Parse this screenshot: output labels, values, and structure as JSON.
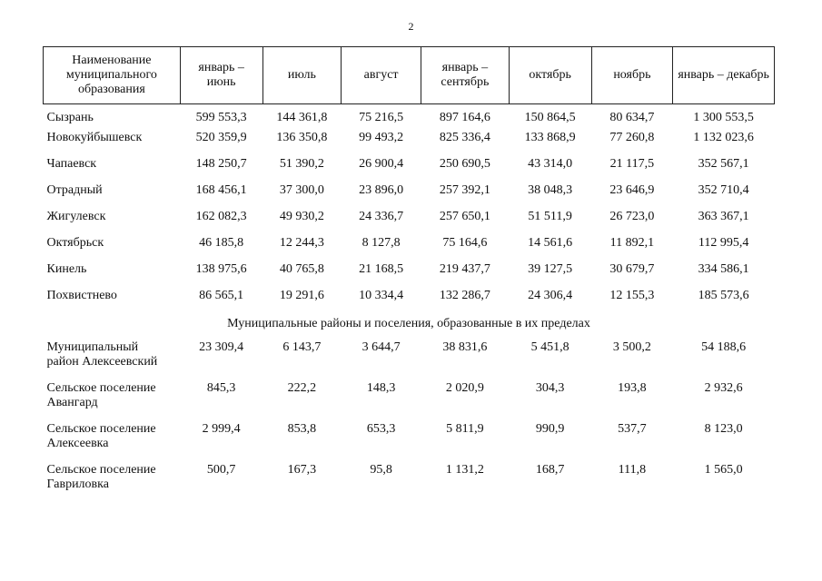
{
  "page_number": "2",
  "table": {
    "headers": [
      "Наименование муниципального образования",
      "январь – июнь",
      "июль",
      "август",
      "январь – сентябрь",
      "октябрь",
      "ноябрь",
      "январь – декабрь"
    ],
    "city_rows": [
      {
        "name": "Сызрань",
        "values": [
          "599 553,3",
          "144 361,8",
          "75 216,5",
          "897 164,6",
          "150 864,5",
          "80 634,7",
          "1 300 553,5"
        ]
      },
      {
        "name": "Новокуйбышевск",
        "values": [
          "520 359,9",
          "136 350,8",
          "99 493,2",
          "825 336,4",
          "133 868,9",
          "77 260,8",
          "1 132 023,6"
        ]
      },
      {
        "name": "Чапаевск",
        "values": [
          "148 250,7",
          "51 390,2",
          "26 900,4",
          "250 690,5",
          "43 314,0",
          "21 117,5",
          "352 567,1"
        ]
      },
      {
        "name": "Отрадный",
        "values": [
          "168 456,1",
          "37 300,0",
          "23 896,0",
          "257 392,1",
          "38 048,3",
          "23 646,9",
          "352 710,4"
        ]
      },
      {
        "name": "Жигулевск",
        "values": [
          "162 082,3",
          "49 930,2",
          "24 336,7",
          "257 650,1",
          "51 511,9",
          "26 723,0",
          "363 367,1"
        ]
      },
      {
        "name": "Октябрьск",
        "values": [
          "46 185,8",
          "12 244,3",
          "8 127,8",
          "75 164,6",
          "14 561,6",
          "11 892,1",
          "112 995,4"
        ]
      },
      {
        "name": "Кинель",
        "values": [
          "138 975,6",
          "40 765,8",
          "21 168,5",
          "219 437,7",
          "39 127,5",
          "30 679,7",
          "334 586,1"
        ]
      },
      {
        "name": "Похвистнево",
        "values": [
          "86 565,1",
          "19 291,6",
          "10 334,4",
          "132 286,7",
          "24 306,4",
          "12 155,3",
          "185 573,6"
        ]
      }
    ],
    "section_title": "Муниципальные районы и поселения, образованные в их пределах",
    "district_rows": [
      {
        "name_line1": "Муниципальный",
        "name_line2": "район Алексеевский",
        "values": [
          "23 309,4",
          "6 143,7",
          "3 644,7",
          "38 831,6",
          "5 451,8",
          "3 500,2",
          "54 188,6"
        ]
      },
      {
        "name_line1": "Сельское поселение",
        "name_line2": "Авангард",
        "values": [
          "845,3",
          "222,2",
          "148,3",
          "2 020,9",
          "304,3",
          "193,8",
          "2 932,6"
        ]
      },
      {
        "name_line1": "Сельское поселение",
        "name_line2": "Алексеевка",
        "values": [
          "2 999,4",
          "853,8",
          "653,3",
          "5 811,9",
          "990,9",
          "537,7",
          "8 123,0"
        ]
      },
      {
        "name_line1": "Сельское поселение",
        "name_line2": "Гавриловка",
        "values": [
          "500,7",
          "167,3",
          "95,8",
          "1 131,2",
          "168,7",
          "111,8",
          "1 565,0"
        ]
      }
    ]
  }
}
